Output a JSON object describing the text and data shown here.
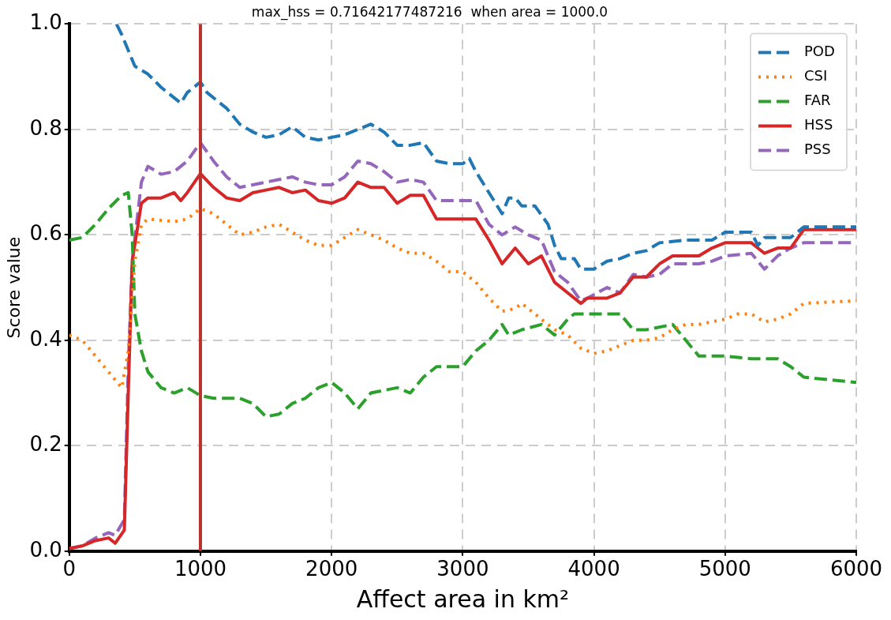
{
  "chart_data": {
    "type": "line",
    "title": "max_hss = 0.71642177487216  when area = 1000.0",
    "xlabel": "Affect area in km²",
    "ylabel": "Score value",
    "xlim": [
      0,
      6000
    ],
    "xticks": [
      0,
      1000,
      2000,
      3000,
      4000,
      5000,
      6000
    ],
    "ylim": [
      0,
      1
    ],
    "yticks": [
      {
        "value": 0,
        "label": "0.0"
      },
      0.2,
      0.4,
      0.6,
      0.8,
      {
        "value": 1,
        "label": "1.0"
      }
    ],
    "grid": true,
    "legend": "top right",
    "marker": "none",
    "ref_lines": [
      {
        "axis": "x",
        "value": 1000,
        "color": "#b8322e"
      }
    ],
    "series": [
      {
        "name": "POD",
        "color": "#1f77b4",
        "line_style": "dashed",
        "x": [
          360,
          400,
          450,
          500,
          600,
          700,
          800,
          850,
          900,
          1000,
          1050,
          1200,
          1300,
          1400,
          1500,
          1600,
          1700,
          1800,
          1900,
          2000,
          2100,
          2200,
          2300,
          2400,
          2500,
          2600,
          2700,
          2800,
          2900,
          3000,
          3050,
          3100,
          3200,
          3300,
          3350,
          3400,
          3450,
          3550,
          3650,
          3700,
          3750,
          3850,
          3900,
          4000,
          4100,
          4200,
          4300,
          4400,
          4500,
          4700,
          4900,
          5000,
          5200,
          5250,
          5300,
          5500,
          5600,
          6000
        ],
        "values": [
          1.0,
          0.98,
          0.95,
          0.92,
          0.905,
          0.88,
          0.86,
          0.85,
          0.87,
          0.89,
          0.87,
          0.84,
          0.81,
          0.795,
          0.785,
          0.79,
          0.805,
          0.785,
          0.78,
          0.785,
          0.79,
          0.8,
          0.81,
          0.795,
          0.77,
          0.77,
          0.775,
          0.74,
          0.735,
          0.735,
          0.745,
          0.72,
          0.68,
          0.64,
          0.67,
          0.67,
          0.655,
          0.655,
          0.62,
          0.58,
          0.555,
          0.555,
          0.535,
          0.535,
          0.55,
          0.555,
          0.565,
          0.57,
          0.585,
          0.59,
          0.59,
          0.605,
          0.605,
          0.58,
          0.595,
          0.595,
          0.615,
          0.615
        ]
      },
      {
        "name": "CSI",
        "color": "#ff7f0e",
        "line_style": "dotted",
        "x": [
          0,
          100,
          200,
          300,
          400,
          450,
          500,
          550,
          600,
          800,
          900,
          1000,
          1100,
          1200,
          1300,
          1400,
          1500,
          1600,
          1700,
          1800,
          1900,
          2000,
          2100,
          2200,
          2300,
          2400,
          2500,
          2600,
          2700,
          2800,
          2900,
          3000,
          3100,
          3200,
          3300,
          3400,
          3450,
          3500,
          3600,
          3700,
          3800,
          3900,
          4000,
          4100,
          4200,
          4300,
          4400,
          4500,
          4600,
          4700,
          4800,
          5000,
          5100,
          5200,
          5300,
          5400,
          5500,
          5600,
          6000
        ],
        "values": [
          0.41,
          0.4,
          0.37,
          0.34,
          0.31,
          0.38,
          0.55,
          0.62,
          0.63,
          0.625,
          0.63,
          0.65,
          0.64,
          0.62,
          0.6,
          0.605,
          0.615,
          0.62,
          0.605,
          0.59,
          0.58,
          0.58,
          0.595,
          0.61,
          0.6,
          0.59,
          0.575,
          0.565,
          0.565,
          0.55,
          0.53,
          0.53,
          0.51,
          0.48,
          0.455,
          0.46,
          0.47,
          0.46,
          0.44,
          0.42,
          0.41,
          0.385,
          0.375,
          0.38,
          0.39,
          0.4,
          0.4,
          0.405,
          0.42,
          0.43,
          0.43,
          0.44,
          0.45,
          0.45,
          0.435,
          0.44,
          0.45,
          0.47,
          0.475
        ]
      },
      {
        "name": "FAR",
        "color": "#2ca02c",
        "line_style": "dashed",
        "x": [
          0,
          100,
          200,
          300,
          400,
          450,
          480,
          500,
          550,
          600,
          700,
          800,
          900,
          1000,
          1100,
          1300,
          1400,
          1500,
          1600,
          1700,
          1800,
          1900,
          2000,
          2100,
          2200,
          2300,
          2500,
          2600,
          2700,
          2800,
          3000,
          3100,
          3200,
          3300,
          3350,
          3450,
          3600,
          3700,
          3800,
          3850,
          4000,
          4200,
          4300,
          4400,
          4600,
          4700,
          4800,
          5000,
          5200,
          5400,
          5500,
          5600,
          6000
        ],
        "values": [
          0.59,
          0.595,
          0.62,
          0.65,
          0.675,
          0.68,
          0.6,
          0.45,
          0.38,
          0.34,
          0.31,
          0.3,
          0.31,
          0.295,
          0.29,
          0.29,
          0.28,
          0.255,
          0.26,
          0.28,
          0.29,
          0.31,
          0.32,
          0.3,
          0.27,
          0.3,
          0.31,
          0.3,
          0.33,
          0.35,
          0.35,
          0.38,
          0.4,
          0.43,
          0.41,
          0.42,
          0.43,
          0.41,
          0.44,
          0.45,
          0.45,
          0.45,
          0.42,
          0.42,
          0.43,
          0.4,
          0.37,
          0.37,
          0.365,
          0.365,
          0.35,
          0.33,
          0.32
        ]
      },
      {
        "name": "HSS",
        "color": "#d62728",
        "line_style": "solid",
        "x": [
          0,
          100,
          200,
          300,
          350,
          420,
          450,
          480,
          550,
          600,
          700,
          800,
          850,
          900,
          1000,
          1100,
          1200,
          1300,
          1400,
          1500,
          1600,
          1700,
          1800,
          1900,
          2000,
          2100,
          2200,
          2300,
          2400,
          2500,
          2600,
          2700,
          2800,
          3000,
          3100,
          3200,
          3300,
          3400,
          3500,
          3600,
          3700,
          3800,
          3900,
          3950,
          4100,
          4200,
          4300,
          4400,
          4500,
          4600,
          4800,
          4900,
          5000,
          5200,
          5300,
          5400,
          5500,
          5600,
          6000
        ],
        "values": [
          0.005,
          0.01,
          0.02,
          0.025,
          0.015,
          0.04,
          0.3,
          0.55,
          0.66,
          0.67,
          0.67,
          0.68,
          0.665,
          0.68,
          0.716,
          0.69,
          0.67,
          0.665,
          0.68,
          0.685,
          0.69,
          0.68,
          0.685,
          0.665,
          0.66,
          0.67,
          0.7,
          0.69,
          0.69,
          0.66,
          0.675,
          0.675,
          0.63,
          0.63,
          0.63,
          0.59,
          0.545,
          0.575,
          0.545,
          0.56,
          0.51,
          0.49,
          0.47,
          0.48,
          0.48,
          0.49,
          0.52,
          0.52,
          0.545,
          0.56,
          0.56,
          0.575,
          0.585,
          0.585,
          0.565,
          0.575,
          0.575,
          0.61,
          0.61
        ]
      },
      {
        "name": "PSS",
        "color": "#9467bd",
        "line_style": "dashed",
        "x": [
          0,
          100,
          200,
          300,
          350,
          420,
          450,
          480,
          550,
          600,
          700,
          800,
          900,
          1000,
          1100,
          1200,
          1300,
          1400,
          1500,
          1600,
          1700,
          1800,
          1900,
          2000,
          2100,
          2200,
          2300,
          2400,
          2500,
          2600,
          2700,
          2800,
          3000,
          3100,
          3200,
          3300,
          3400,
          3500,
          3600,
          3700,
          3800,
          3900,
          3950,
          4100,
          4200,
          4300,
          4400,
          4500,
          4600,
          4800,
          4900,
          5000,
          5200,
          5300,
          5400,
          5500,
          5600,
          6000
        ],
        "values": [
          0.005,
          0.01,
          0.025,
          0.035,
          0.03,
          0.06,
          0.35,
          0.55,
          0.7,
          0.73,
          0.715,
          0.72,
          0.74,
          0.775,
          0.74,
          0.71,
          0.69,
          0.695,
          0.7,
          0.705,
          0.71,
          0.7,
          0.695,
          0.695,
          0.71,
          0.74,
          0.735,
          0.72,
          0.7,
          0.705,
          0.7,
          0.665,
          0.665,
          0.665,
          0.62,
          0.6,
          0.615,
          0.6,
          0.59,
          0.53,
          0.51,
          0.475,
          0.48,
          0.5,
          0.49,
          0.525,
          0.52,
          0.525,
          0.545,
          0.545,
          0.55,
          0.56,
          0.565,
          0.535,
          0.56,
          0.575,
          0.585,
          0.585
        ]
      }
    ]
  }
}
